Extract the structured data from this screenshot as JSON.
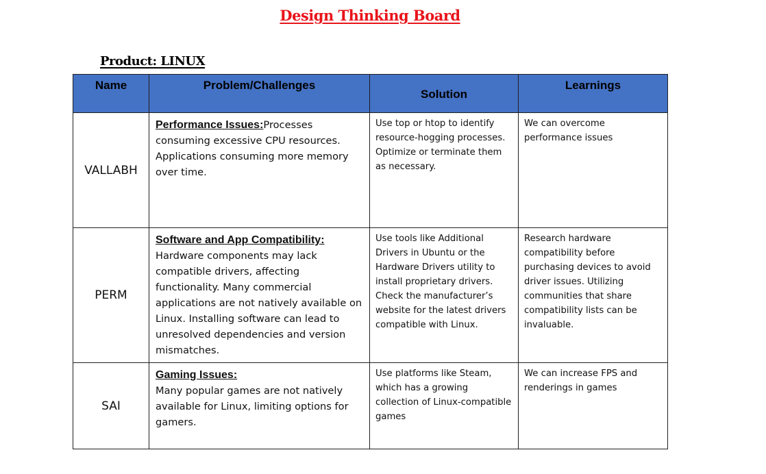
{
  "document": {
    "title": "Design Thinking Board",
    "product_label": "Product: LINUX"
  },
  "table": {
    "headers": {
      "name": "Name",
      "problem": "Problem/Challenges",
      "solution": "Solution",
      "learnings": "Learnings"
    },
    "rows": [
      {
        "name": "VALLABH",
        "problem_heading": "Performance Issues:",
        "problem_text": "Processes consuming excessive CPU resources. Applications consuming more memory over time.",
        "solution": "Use top or htop to identify resource-hogging processes. Optimize or terminate them as necessary.",
        "learnings": "We can overcome performance issues"
      },
      {
        "name": "PERM",
        "problem_heading": "Software and App Compatibility:",
        "problem_text": "Hardware components may lack compatible drivers, affecting functionality. Many commercial applications are not natively available on Linux. Installing software can lead to unresolved dependencies and version mismatches.",
        "solution": "Use tools like  Additional Drivers in Ubuntu or the Hardware Drivers utility to install proprietary drivers. Check the manufacturer’s website for the latest drivers compatible with Linux.",
        "learnings": "Research hardware compatibility before purchasing devices to avoid driver issues. Utilizing communities that share compatibility lists can be invaluable."
      },
      {
        "name": "SAI",
        "problem_heading": "Gaming Issues:",
        "problem_text": "Many popular games are not natively available for Linux, limiting options for gamers.",
        "solution": "Use platforms like Steam, which has a growing collection of Linux-compatible games",
        "learnings": "We can increase FPS and renderings in games"
      }
    ]
  }
}
